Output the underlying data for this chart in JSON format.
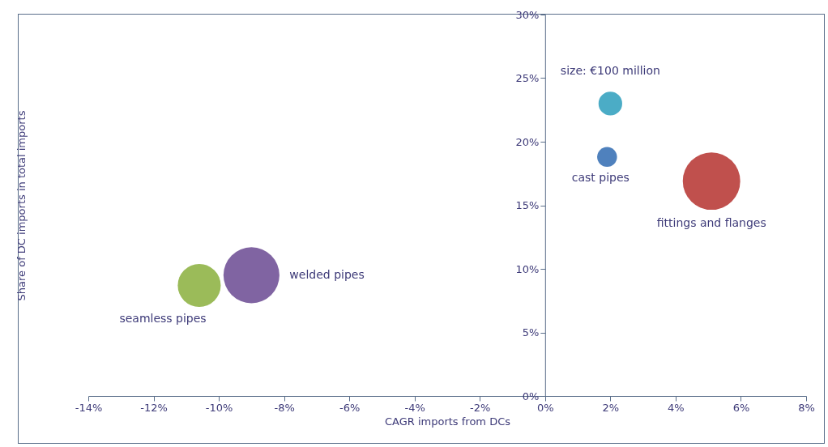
{
  "chart_data": {
    "type": "bubble",
    "xlabel": "CAGR imports from DCs",
    "ylabel": "Share of DC imports in total imports",
    "series": [
      {
        "color": "#4bacc6",
        "x": [
          2.0
        ],
        "values": [
          23.0
        ],
        "sizes": [
          0.17
        ]
      },
      {
        "name": "cast pipes",
        "color": "#4f81bd",
        "x": [
          1.9
        ],
        "values": [
          18.8
        ],
        "sizes": [
          0.12
        ]
      },
      {
        "name": "fittings and flanges",
        "color": "#c0504d",
        "x": [
          5.1
        ],
        "values": [
          16.9
        ],
        "sizes": [
          1
        ]
      },
      {
        "name": "welded pipes",
        "color": "#8064a2",
        "x": [
          -9.0
        ],
        "values": [
          9.5
        ],
        "sizes": [
          0.95
        ]
      },
      {
        "name": "seamless pipes",
        "color": "#9bbb59",
        "x": [
          -10.6
        ],
        "values": [
          8.7
        ],
        "sizes": [
          0.56
        ]
      }
    ],
    "annotations": [
      {
        "text": "size: €100 million",
        "x": 2.0,
        "y": 23.0
      }
    ],
    "xlim": [
      -14,
      8
    ],
    "xticks": [
      {
        "value": -14,
        "label": "-14%"
      },
      {
        "value": -12,
        "label": "-12%"
      },
      {
        "value": -10,
        "label": "-10%"
      },
      {
        "value": -8,
        "label": "-8%"
      },
      {
        "value": -6,
        "label": "-6%"
      },
      {
        "value": -4,
        "label": "-4%"
      },
      {
        "value": -2,
        "label": "-2%"
      },
      {
        "value": 0,
        "label": "0%"
      },
      {
        "value": 2,
        "label": "2%"
      },
      {
        "value": 4,
        "label": "4%"
      },
      {
        "value": 6,
        "label": "6%"
      },
      {
        "value": 8,
        "label": "8%"
      }
    ],
    "ylim": [
      0,
      30
    ],
    "yticks": [
      {
        "value": 0,
        "label": "0%"
      },
      {
        "value": 5,
        "label": "5%"
      },
      {
        "value": 10,
        "label": "10%"
      },
      {
        "value": 15,
        "label": "15%"
      },
      {
        "value": 20,
        "label": "20%"
      },
      {
        "value": 25,
        "label": "25%"
      },
      {
        "value": 30,
        "label": "30%"
      }
    ],
    "grid": false
  }
}
